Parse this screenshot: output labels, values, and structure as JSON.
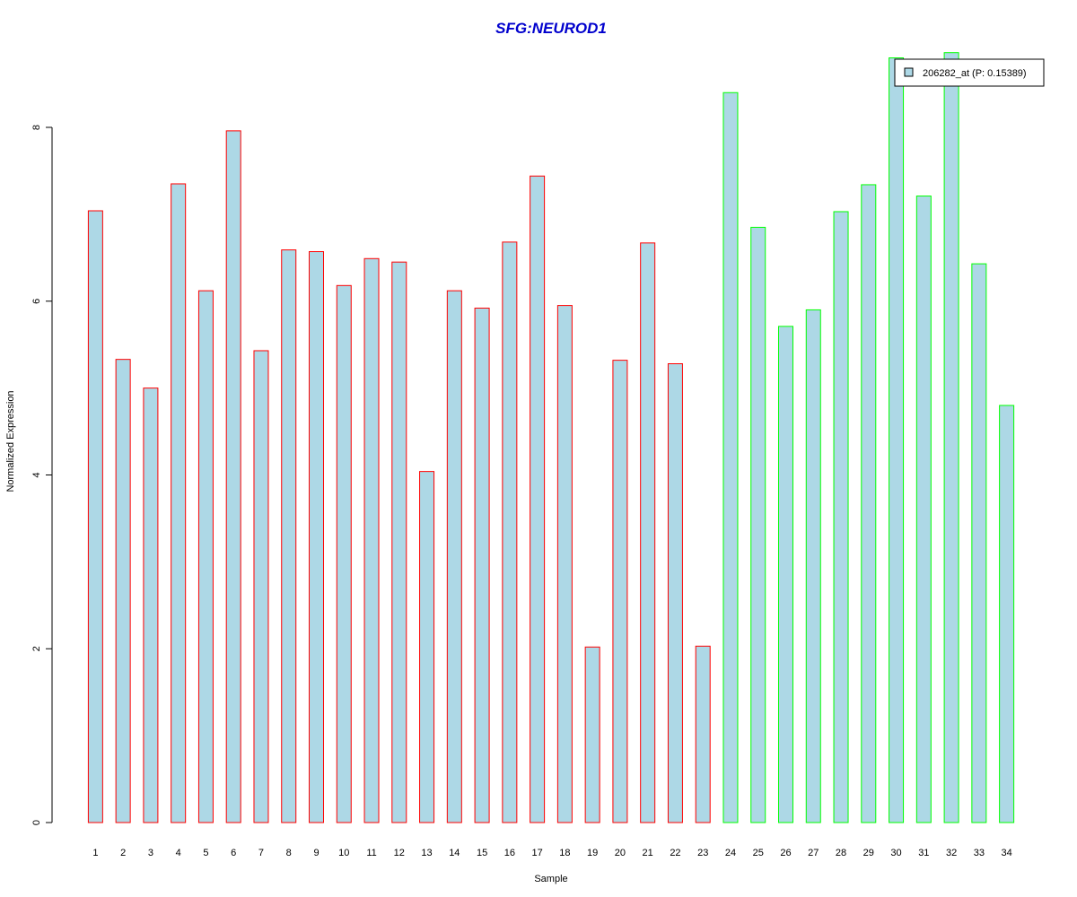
{
  "chart_data": {
    "type": "bar",
    "title": "SFG:NEUROD1",
    "xlabel": "Sample",
    "ylabel": "Normalized Expression",
    "ylim": [
      0,
      8.9
    ],
    "yticks": [
      0,
      2,
      4,
      6,
      8
    ],
    "grid": false,
    "legend": {
      "placement": "top-right",
      "entries": [
        "206282_at (P: 0.15389)"
      ]
    },
    "categories": [
      "1",
      "2",
      "3",
      "4",
      "5",
      "6",
      "7",
      "8",
      "9",
      "10",
      "11",
      "12",
      "13",
      "14",
      "15",
      "16",
      "17",
      "18",
      "19",
      "20",
      "21",
      "22",
      "23",
      "24",
      "25",
      "26",
      "27",
      "28",
      "29",
      "30",
      "31",
      "32",
      "33",
      "34"
    ],
    "values": [
      7.04,
      5.33,
      5.0,
      7.35,
      6.12,
      7.96,
      5.43,
      6.59,
      6.57,
      6.18,
      6.49,
      6.45,
      4.04,
      6.12,
      5.92,
      6.68,
      7.44,
      5.95,
      2.02,
      5.32,
      6.67,
      5.28,
      2.03,
      8.4,
      6.85,
      5.71,
      5.9,
      7.03,
      7.34,
      8.8,
      7.21,
      8.86,
      6.43,
      4.8
    ],
    "groups": [
      "red",
      "red",
      "red",
      "red",
      "red",
      "red",
      "red",
      "red",
      "red",
      "red",
      "red",
      "red",
      "red",
      "red",
      "red",
      "red",
      "red",
      "red",
      "red",
      "red",
      "red",
      "red",
      "red",
      "green",
      "green",
      "green",
      "green",
      "green",
      "green",
      "green",
      "green",
      "green",
      "green",
      "green"
    ],
    "colors": {
      "bar_fill": "#add8e6",
      "border_red": "#ff0000",
      "border_green": "#00ff00",
      "title": "#0000cd",
      "axis": "#000000"
    }
  }
}
